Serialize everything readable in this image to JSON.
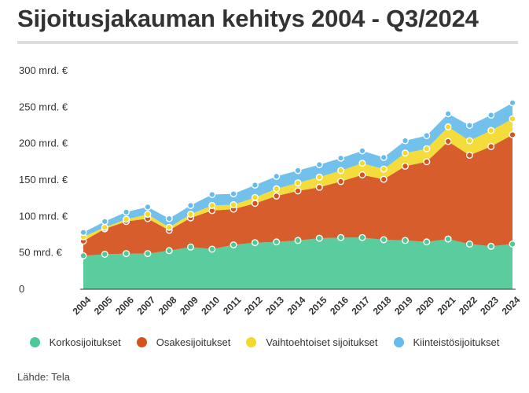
{
  "title": "Sijoitusjakauman kehitys 2004 - Q3/2024",
  "source": "Lähde: Tela",
  "chart_data": {
    "type": "area",
    "stacked": true,
    "categories": [
      "2004",
      "2005",
      "2006",
      "2007",
      "2008",
      "2009",
      "2010",
      "2011",
      "2012",
      "2013",
      "2014",
      "2015",
      "2016",
      "2017",
      "2018",
      "2019",
      "2020",
      "2021",
      "2022",
      "2023",
      "2024"
    ],
    "series": [
      {
        "name": "Korkosijoitukset",
        "color": "#4DC897",
        "values": [
          46,
          48,
          49,
          49,
          53,
          58,
          55,
          61,
          64,
          65,
          67,
          70,
          71,
          71,
          68,
          67,
          65,
          69,
          62,
          59,
          62
        ]
      },
      {
        "name": "Osakesijoitukset",
        "color": "#D4521C",
        "values": [
          20,
          35,
          44,
          48,
          28,
          40,
          53,
          49,
          54,
          63,
          68,
          70,
          77,
          86,
          83,
          102,
          110,
          134,
          122,
          137,
          150
        ]
      },
      {
        "name": "Vaihtoehtoiset sijoitukset",
        "color": "#F2D92C",
        "values": [
          6,
          2,
          3,
          6,
          4,
          5,
          7,
          6,
          8,
          10,
          11,
          14,
          15,
          16,
          14,
          18,
          18,
          20,
          20,
          22,
          22
        ]
      },
      {
        "name": "Kiinteistösijoitukset",
        "color": "#67BBEB",
        "values": [
          6,
          8,
          10,
          10,
          12,
          12,
          15,
          15,
          17,
          17,
          17,
          17,
          17,
          17,
          16,
          17,
          18,
          18,
          21,
          21,
          22
        ]
      }
    ],
    "ylim": [
      0,
      300
    ],
    "yticks": [
      {
        "value": 0,
        "label": "0"
      },
      {
        "value": 50,
        "label": "50 mrd. €"
      },
      {
        "value": 100,
        "label": "100 mrd. €"
      },
      {
        "value": 150,
        "label": "150 mrd. €"
      },
      {
        "value": 200,
        "label": "200 mrd. €"
      },
      {
        "value": 250,
        "label": "250 mrd. €"
      },
      {
        "value": 300,
        "label": "300 mrd. €"
      }
    ],
    "xlabel": "",
    "ylabel": "",
    "legend_position": "bottom",
    "grid": false
  }
}
